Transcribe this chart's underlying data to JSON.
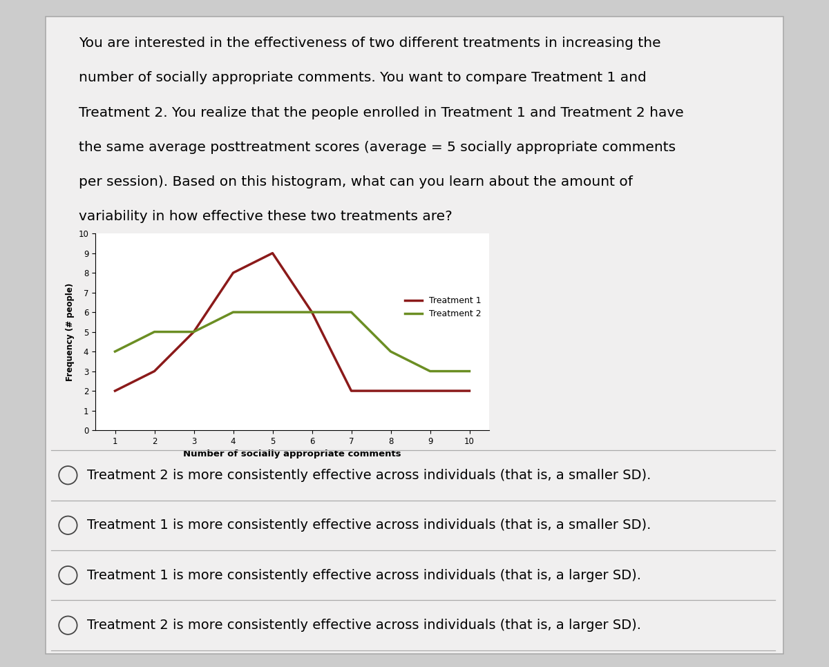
{
  "question_text": [
    "You are interested in the effectiveness of two different treatments in increasing the",
    "number of socially appropriate comments. You want to compare Treatment 1 and",
    "Treatment 2. You realize that the people enrolled in Treatment 1 and Treatment 2 have",
    "the same average posttreatment scores (average = 5 socially appropriate comments",
    "per session). Based on this histogram, what can you learn about the amount of",
    "variability in how effective these two treatments are?"
  ],
  "treatment1_x": [
    1,
    2,
    3,
    4,
    5,
    6,
    7,
    8,
    9,
    10
  ],
  "treatment1_y": [
    2,
    3,
    5,
    8,
    9,
    6,
    2,
    2,
    2,
    2
  ],
  "treatment2_x": [
    1,
    2,
    3,
    4,
    5,
    6,
    7,
    8,
    9,
    10
  ],
  "treatment2_y": [
    4,
    5,
    5,
    6,
    6,
    6,
    6,
    4,
    3,
    3
  ],
  "t1_color": "#8B1A1A",
  "t2_color": "#6B8E23",
  "xlabel": "Number of socially appropriate comments",
  "ylabel": "Frequency (# people)",
  "ylim": [
    0,
    10
  ],
  "xlim": [
    0.5,
    10.5
  ],
  "yticks": [
    0,
    1,
    2,
    3,
    4,
    5,
    6,
    7,
    8,
    9,
    10
  ],
  "xticks": [
    1,
    2,
    3,
    4,
    5,
    6,
    7,
    8,
    9,
    10
  ],
  "legend_t1": "Treatment 1",
  "legend_t2": "Treatment 2",
  "answer_options": [
    "Treatment 2 is more consistently effective across individuals (that is, a smaller SD).",
    "Treatment 1 is more consistently effective across individuals (that is, a smaller SD).",
    "Treatment 1 is more consistently effective across individuals (that is, a larger SD).",
    "Treatment 2 is more consistently effective across individuals (that is, a larger SD)."
  ],
  "bg_color": "#cccccc",
  "content_bg_color": "#f0efef",
  "line_width": 2.5,
  "question_fontsize": 14.5,
  "option_fontsize": 14.0
}
